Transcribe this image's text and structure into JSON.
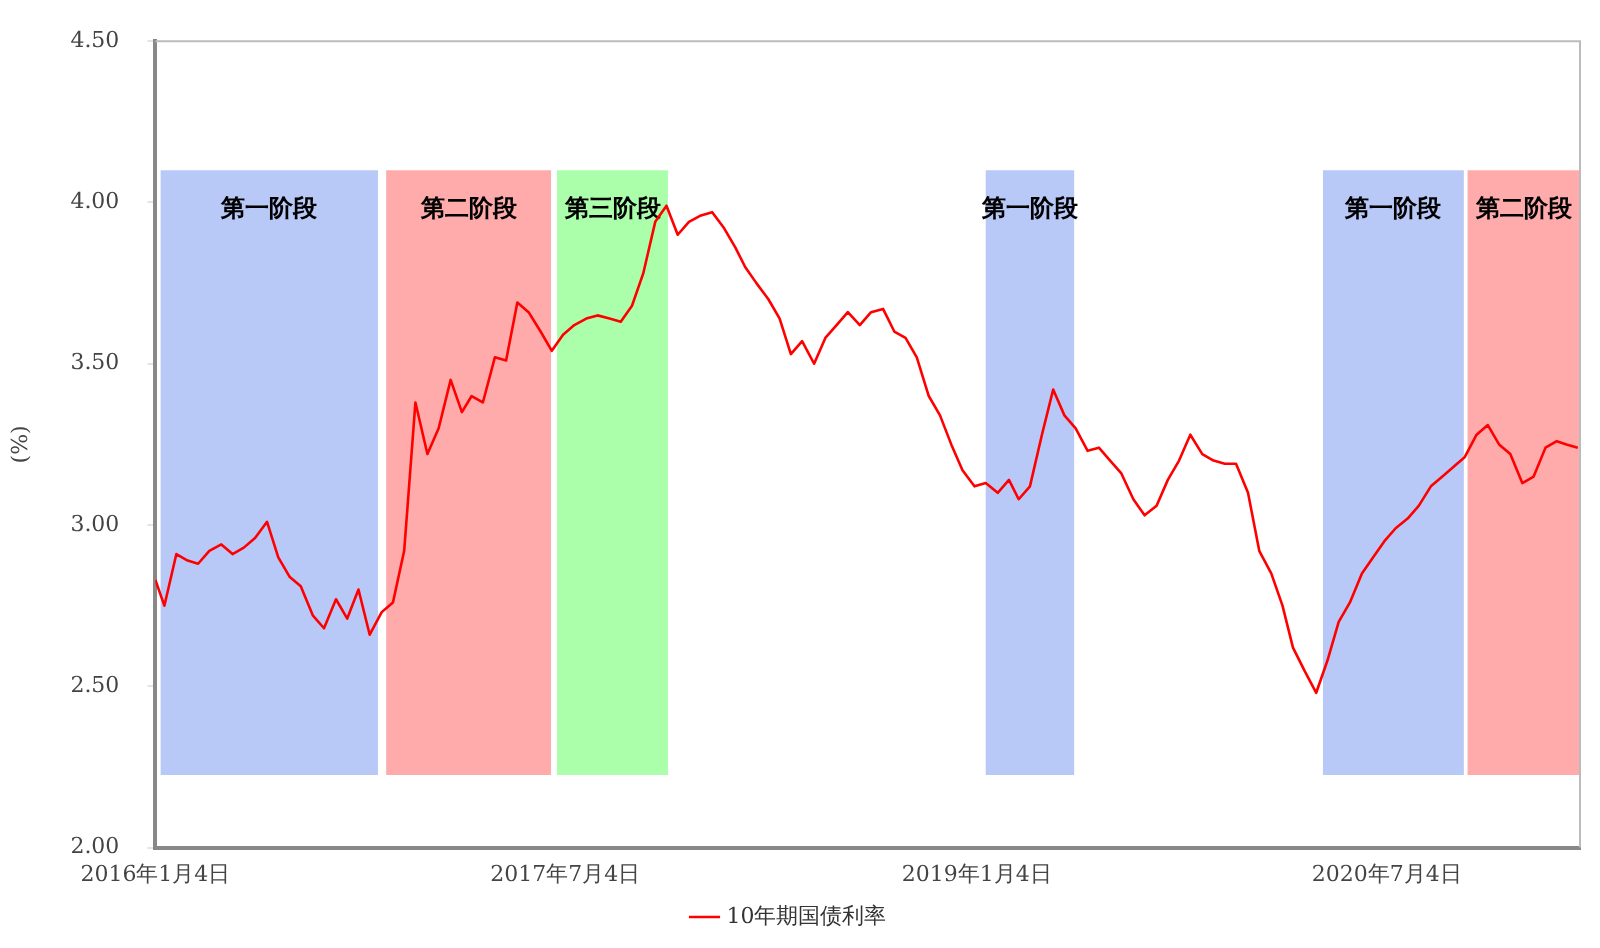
{
  "chart_data": {
    "type": "line",
    "ylabel": "(%)",
    "x": [
      "2016-01-04",
      "2016-01-16",
      "2016-02-01",
      "2016-02-16",
      "2016-03-01",
      "2016-03-16",
      "2016-04-01",
      "2016-04-16",
      "2016-05-01",
      "2016-05-16",
      "2016-06-01",
      "2016-06-16",
      "2016-07-01",
      "2016-07-16",
      "2016-08-01",
      "2016-08-16",
      "2016-09-01",
      "2016-09-16",
      "2016-10-01",
      "2016-10-16",
      "2016-11-01",
      "2016-11-16",
      "2016-12-01",
      "2016-12-16",
      "2017-01-01",
      "2017-01-16",
      "2017-02-01",
      "2017-02-16",
      "2017-03-01",
      "2017-03-16",
      "2017-04-01",
      "2017-04-16",
      "2017-05-01",
      "2017-05-16",
      "2017-06-01",
      "2017-06-16",
      "2017-07-01",
      "2017-07-16",
      "2017-08-01",
      "2017-08-16",
      "2017-09-01",
      "2017-09-16",
      "2017-10-01",
      "2017-10-16",
      "2017-11-01",
      "2017-11-16",
      "2017-12-01",
      "2017-12-16",
      "2018-01-01",
      "2018-01-16",
      "2018-02-01",
      "2018-02-16",
      "2018-03-01",
      "2018-03-16",
      "2018-04-01",
      "2018-04-16",
      "2018-05-01",
      "2018-05-16",
      "2018-06-01",
      "2018-06-16",
      "2018-07-01",
      "2018-07-16",
      "2018-08-01",
      "2018-08-16",
      "2018-09-01",
      "2018-09-16",
      "2018-10-01",
      "2018-10-16",
      "2018-11-01",
      "2018-11-16",
      "2018-12-01",
      "2018-12-16",
      "2019-01-01",
      "2019-01-16",
      "2019-02-01",
      "2019-02-16",
      "2019-03-01",
      "2019-03-16",
      "2019-04-01",
      "2019-04-16",
      "2019-05-01",
      "2019-05-16",
      "2019-06-01",
      "2019-06-16",
      "2019-07-01",
      "2019-07-16",
      "2019-08-01",
      "2019-08-16",
      "2019-09-01",
      "2019-09-16",
      "2019-10-01",
      "2019-10-16",
      "2019-11-01",
      "2019-11-16",
      "2019-12-01",
      "2019-12-16",
      "2020-01-01",
      "2020-01-16",
      "2020-02-01",
      "2020-02-16",
      "2020-03-01",
      "2020-03-16",
      "2020-04-01",
      "2020-04-16",
      "2020-05-01",
      "2020-05-16",
      "2020-06-01",
      "2020-06-16",
      "2020-07-01",
      "2020-07-16",
      "2020-08-01",
      "2020-08-16",
      "2020-09-01",
      "2020-09-16",
      "2020-10-01",
      "2020-10-16",
      "2020-11-01",
      "2020-11-16",
      "2020-12-01",
      "2020-12-16",
      "2021-01-01",
      "2021-01-16",
      "2021-02-01",
      "2021-02-16",
      "2021-03-01",
      "2021-03-16"
    ],
    "series": [
      {
        "name": "10年期国债利率",
        "color": "#ff0000",
        "values": [
          2.83,
          2.75,
          2.91,
          2.89,
          2.88,
          2.92,
          2.94,
          2.91,
          2.93,
          2.96,
          3.01,
          2.9,
          2.84,
          2.81,
          2.72,
          2.68,
          2.77,
          2.71,
          2.8,
          2.66,
          2.73,
          2.76,
          2.92,
          3.38,
          3.22,
          3.3,
          3.45,
          3.35,
          3.4,
          3.38,
          3.52,
          3.51,
          3.69,
          3.66,
          3.6,
          3.54,
          3.59,
          3.62,
          3.64,
          3.65,
          3.64,
          3.63,
          3.68,
          3.78,
          3.94,
          3.99,
          3.9,
          3.94,
          3.96,
          3.97,
          3.92,
          3.86,
          3.8,
          3.75,
          3.7,
          3.64,
          3.53,
          3.57,
          3.5,
          3.58,
          3.62,
          3.66,
          3.62,
          3.66,
          3.67,
          3.6,
          3.58,
          3.52,
          3.4,
          3.34,
          3.25,
          3.17,
          3.12,
          3.13,
          3.1,
          3.14,
          3.08,
          3.12,
          3.28,
          3.42,
          3.34,
          3.3,
          3.23,
          3.24,
          3.2,
          3.16,
          3.08,
          3.03,
          3.06,
          3.14,
          3.2,
          3.28,
          3.22,
          3.2,
          3.19,
          3.19,
          3.1,
          2.92,
          2.85,
          2.75,
          2.62,
          2.55,
          2.48,
          2.58,
          2.7,
          2.76,
          2.85,
          2.9,
          2.95,
          2.99,
          3.02,
          3.06,
          3.12,
          3.15,
          3.18,
          3.21,
          3.28,
          3.31,
          3.25,
          3.22,
          3.13,
          3.15,
          3.24,
          3.26,
          3.25,
          3.24
        ]
      }
    ],
    "xlim": [
      "2016-01-04",
      "2021-03-19"
    ],
    "xticks": [
      {
        "value": "2016-01-04",
        "label": "2016年1月4日"
      },
      {
        "value": "2017-07-04",
        "label": "2017年7月4日"
      },
      {
        "value": "2019-01-04",
        "label": "2019年1月4日"
      },
      {
        "value": "2020-07-04",
        "label": "2020年7月4日"
      }
    ],
    "ylim": [
      2,
      4.5
    ],
    "yticks": [
      {
        "value": 2,
        "label": "2.00"
      },
      {
        "value": 2.5,
        "label": "2.50"
      },
      {
        "value": 3,
        "label": "3.00"
      },
      {
        "value": 3.5,
        "label": "3.50"
      },
      {
        "value": 4,
        "label": "4.00"
      },
      {
        "value": 4.5,
        "label": "4.50"
      }
    ],
    "bands": [
      {
        "axis": "x",
        "from": "2016-01-11",
        "to": "2016-10-27",
        "label": "第一阶段",
        "color": "#b8c9f8"
      },
      {
        "axis": "x",
        "from": "2016-11-07",
        "to": "2017-06-15",
        "label": "第二阶段",
        "color": "#ffabab"
      },
      {
        "axis": "x",
        "from": "2017-06-23",
        "to": "2017-11-18",
        "label": "第三阶段",
        "color": "#abffab"
      },
      {
        "axis": "x",
        "from": "2019-01-16",
        "to": "2019-05-14",
        "label": "第一阶段",
        "color": "#b8c9f8"
      },
      {
        "axis": "x",
        "from": "2020-04-10",
        "to": "2020-10-15",
        "label": "第一阶段",
        "color": "#b8c9f8"
      },
      {
        "axis": "x",
        "from": "2020-10-20",
        "to": "2021-03-19",
        "label": "第二阶段",
        "color": "#ffabab"
      }
    ],
    "grid": false,
    "legend": "bottom",
    "marker": "none",
    "line_style": "solid"
  }
}
